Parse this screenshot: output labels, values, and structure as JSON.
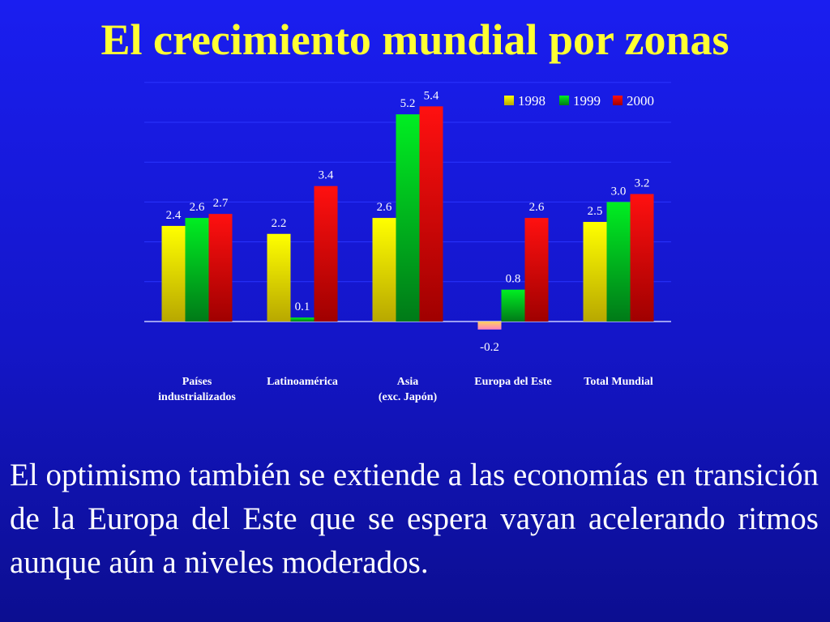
{
  "slide": {
    "title": "El crecimiento mundial por zonas",
    "body": "El optimismo también se extiende a las economías en transición de la Europa del Este que se espera vayan acelerando ritmos aunque aún a niveles moderados."
  },
  "chart_data": {
    "type": "bar",
    "categories": [
      [
        "Países",
        "industrializados"
      ],
      [
        "Latinoamérica"
      ],
      [
        "Asia",
        "(exc. Japón)"
      ],
      [
        "Europa del Este"
      ],
      [
        "Total Mundial"
      ]
    ],
    "series": [
      {
        "name": "1998",
        "values": [
          2.4,
          2.2,
          2.6,
          -0.2,
          2.5
        ],
        "labels": [
          "2.4",
          "2.2",
          "2.6",
          "-0.2",
          "2.5"
        ],
        "color": "#ffff00"
      },
      {
        "name": "1999",
        "values": [
          2.6,
          0.1,
          5.2,
          0.8,
          3.0
        ],
        "labels": [
          "2.6",
          "0.1",
          "5.2",
          "0.8",
          "3.0"
        ],
        "color": "#00dd22"
      },
      {
        "name": "2000",
        "values": [
          2.7,
          3.4,
          5.4,
          2.6,
          3.2
        ],
        "labels": [
          "2.7",
          "3.4",
          "5.4",
          "2.6",
          "3.2"
        ],
        "color": "#ff0000"
      }
    ],
    "ylim": [
      -0.2,
      6
    ],
    "grid": true,
    "legend": "top-right"
  }
}
